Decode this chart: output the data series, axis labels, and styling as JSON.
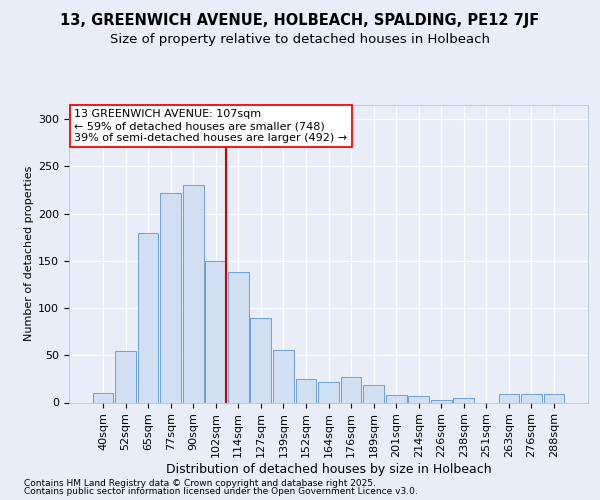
{
  "title1": "13, GREENWICH AVENUE, HOLBEACH, SPALDING, PE12 7JF",
  "title2": "Size of property relative to detached houses in Holbeach",
  "xlabel": "Distribution of detached houses by size in Holbeach",
  "ylabel": "Number of detached properties",
  "categories": [
    "40sqm",
    "52sqm",
    "65sqm",
    "77sqm",
    "90sqm",
    "102sqm",
    "114sqm",
    "127sqm",
    "139sqm",
    "152sqm",
    "164sqm",
    "176sqm",
    "189sqm",
    "201sqm",
    "214sqm",
    "226sqm",
    "238sqm",
    "251sqm",
    "263sqm",
    "276sqm",
    "288sqm"
  ],
  "bar_heights": [
    10,
    55,
    180,
    222,
    230,
    150,
    138,
    90,
    56,
    25,
    22,
    27,
    19,
    8,
    7,
    3,
    5,
    0,
    9,
    9,
    9
  ],
  "bar_fill": "#d0dff2",
  "bar_edge": "#6b9fd4",
  "vline_color": "#cc0000",
  "annotation_line1": "13 GREENWICH AVENUE: 107sqm",
  "annotation_line2": "← 59% of detached houses are smaller (748)",
  "annotation_line3": "39% of semi-detached houses are larger (492) →",
  "yticks": [
    0,
    50,
    100,
    150,
    200,
    250,
    300
  ],
  "ylim": [
    0,
    315
  ],
  "bg_color": "#e8edf8",
  "footnote1": "Contains HM Land Registry data © Crown copyright and database right 2025.",
  "footnote2": "Contains public sector information licensed under the Open Government Licence v3.0.",
  "title1_fontsize": 10.5,
  "title2_fontsize": 9.5,
  "xlabel_fontsize": 9,
  "ylabel_fontsize": 8,
  "tick_fontsize": 8,
  "annot_fontsize": 8,
  "footnote_fontsize": 6.5
}
